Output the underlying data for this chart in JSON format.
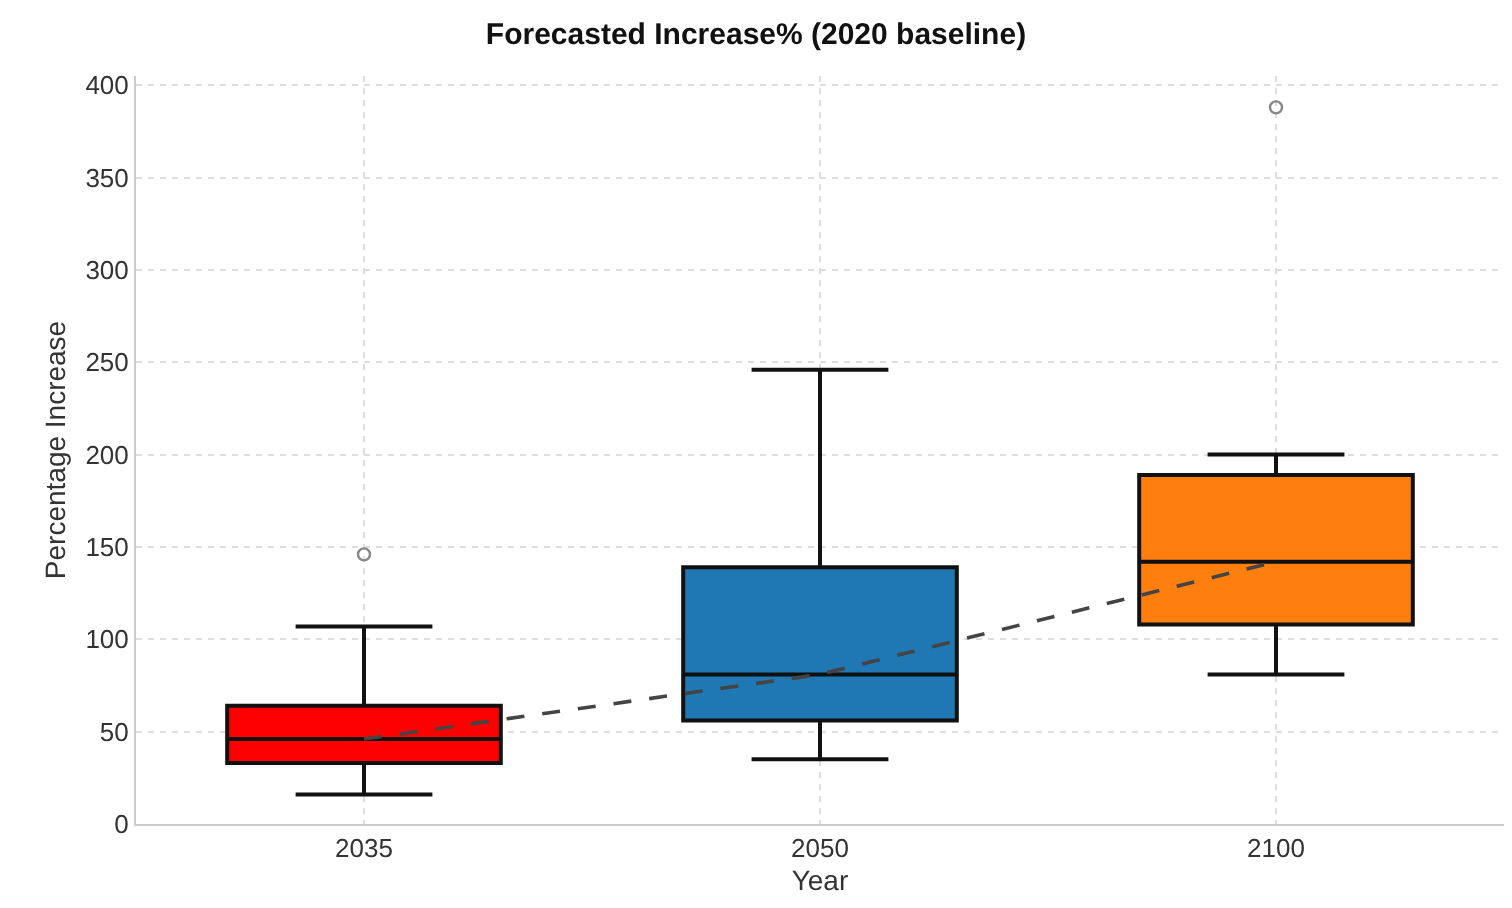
{
  "chart_data": {
    "type": "box",
    "title": "Forecasted Increase% (2020 baseline)",
    "xlabel": "Year",
    "ylabel": "Percentage Increase",
    "categories": [
      "2035",
      "2050",
      "2100"
    ],
    "colors": [
      "#ff0000",
      "#1f77b4",
      "#ff7f0e"
    ],
    "boxes": [
      {
        "low": 16,
        "q1": 33,
        "median": 46,
        "q3": 64,
        "high": 107,
        "outliers": [
          146
        ]
      },
      {
        "low": 35,
        "q1": 56,
        "median": 81,
        "q3": 139,
        "high": 246
      },
      {
        "low": 81,
        "q1": 108,
        "median": 142,
        "q3": 189,
        "high": 200,
        "outliers": [
          388
        ]
      }
    ],
    "series": [
      {
        "type": "line",
        "color": "#444444",
        "line_style": "dashed",
        "values": [
          46,
          81,
          142
        ]
      }
    ],
    "ylim": [
      0,
      405
    ],
    "yticks": [
      0,
      50,
      100,
      150,
      200,
      250,
      300,
      350,
      400
    ],
    "grid": true
  }
}
